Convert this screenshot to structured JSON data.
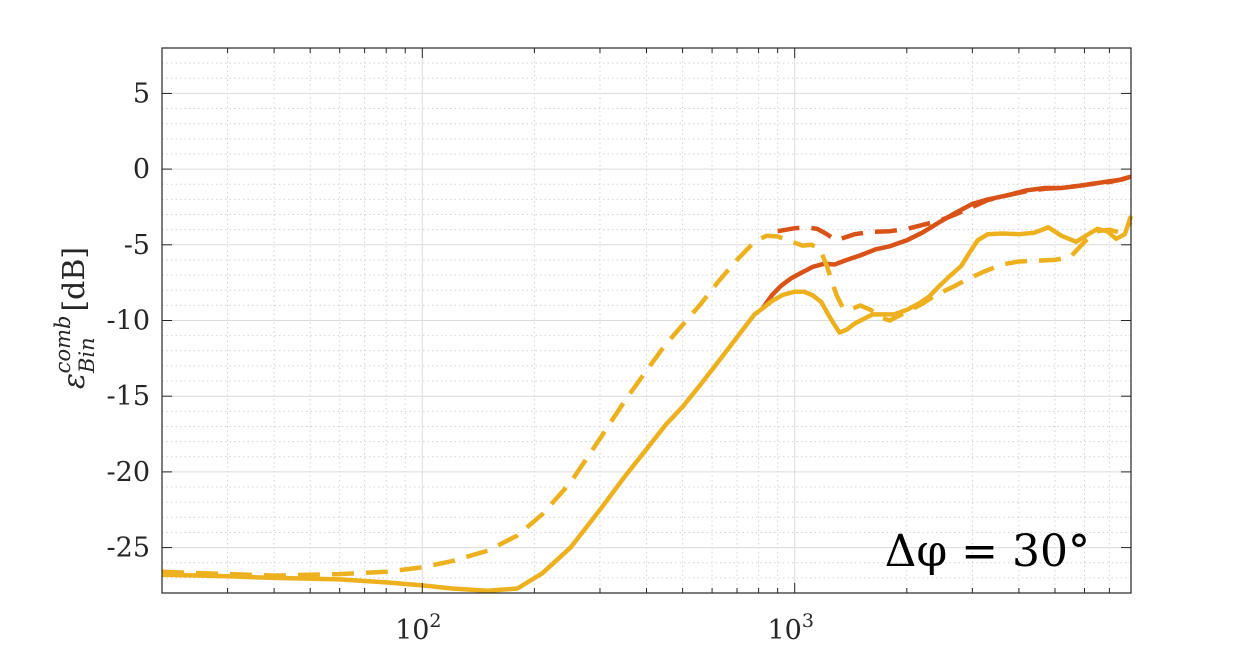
{
  "chart_data": {
    "type": "line",
    "title": "",
    "xlabel": "",
    "ylabel": "ε_Bin^comb [dB]",
    "ylabel_parts": {
      "base": "ε",
      "sup": "comb",
      "sub": "Bin",
      "unit": "[dB]"
    },
    "x_scale": "log",
    "xlim": [
      20,
      8000
    ],
    "ylim": [
      -28,
      8
    ],
    "grid": true,
    "minor_grid": true,
    "legend": "none",
    "x_ticks": [
      {
        "value": 100,
        "base": "10",
        "exp": "2"
      },
      {
        "value": 1000,
        "base": "10",
        "exp": "3"
      }
    ],
    "y_ticks": [
      {
        "value": 5,
        "label": "5"
      },
      {
        "value": 0,
        "label": "0"
      },
      {
        "value": -5,
        "label": "-5"
      },
      {
        "value": -10,
        "label": "-10"
      },
      {
        "value": -15,
        "label": "-15"
      },
      {
        "value": -20,
        "label": "-20"
      },
      {
        "value": -25,
        "label": "-25"
      }
    ],
    "annotation": "Δφ = 30°",
    "series": [
      {
        "color": "#D95319",
        "style": "solid",
        "points": [
          [
            820,
            -9.2
          ],
          [
            870,
            -8.3
          ],
          [
            920,
            -7.7
          ],
          [
            980,
            -7.2
          ],
          [
            1050,
            -6.8
          ],
          [
            1120,
            -6.45
          ],
          [
            1200,
            -6.25
          ],
          [
            1280,
            -6.3
          ],
          [
            1380,
            -6.0
          ],
          [
            1500,
            -5.7
          ],
          [
            1650,
            -5.3
          ],
          [
            1800,
            -5.1
          ],
          [
            2000,
            -4.7
          ],
          [
            2200,
            -4.2
          ],
          [
            2450,
            -3.5
          ],
          [
            2700,
            -2.9
          ],
          [
            3000,
            -2.3
          ],
          [
            3300,
            -2.0
          ],
          [
            3700,
            -1.75
          ],
          [
            4200,
            -1.4
          ],
          [
            4700,
            -1.25
          ],
          [
            5200,
            -1.25
          ],
          [
            5800,
            -1.1
          ],
          [
            6400,
            -0.95
          ],
          [
            7000,
            -0.8
          ],
          [
            7500,
            -0.7
          ],
          [
            8000,
            -0.5
          ]
        ]
      },
      {
        "color": "#D95319",
        "style": "dashed",
        "points": [
          [
            900,
            -4.1
          ],
          [
            950,
            -4.0
          ],
          [
            1000,
            -3.9
          ],
          [
            1080,
            -3.85
          ],
          [
            1150,
            -3.95
          ],
          [
            1220,
            -4.3
          ],
          [
            1290,
            -4.7
          ],
          [
            1350,
            -4.55
          ],
          [
            1450,
            -4.3
          ],
          [
            1600,
            -4.15
          ],
          [
            1800,
            -4.1
          ],
          [
            2000,
            -3.95
          ],
          [
            2200,
            -3.7
          ],
          [
            2450,
            -3.4
          ],
          [
            2700,
            -3.0
          ],
          [
            3000,
            -2.5
          ],
          [
            3300,
            -2.05
          ],
          [
            3700,
            -1.75
          ],
          [
            4200,
            -1.45
          ],
          [
            4700,
            -1.3
          ],
          [
            5200,
            -1.25
          ],
          [
            5800,
            -1.1
          ],
          [
            6400,
            -0.95
          ],
          [
            7000,
            -0.85
          ],
          [
            7500,
            -0.7
          ],
          [
            8000,
            -0.5
          ]
        ]
      },
      {
        "color": "#EDB120",
        "style": "solid",
        "points": [
          [
            20,
            -26.8
          ],
          [
            30,
            -26.9
          ],
          [
            40,
            -27.0
          ],
          [
            60,
            -27.1
          ],
          [
            80,
            -27.3
          ],
          [
            100,
            -27.5
          ],
          [
            120,
            -27.7
          ],
          [
            150,
            -27.85
          ],
          [
            180,
            -27.7
          ],
          [
            210,
            -26.7
          ],
          [
            250,
            -25.0
          ],
          [
            300,
            -22.5
          ],
          [
            350,
            -20.3
          ],
          [
            400,
            -18.5
          ],
          [
            450,
            -16.9
          ],
          [
            500,
            -15.7
          ],
          [
            560,
            -14.2
          ],
          [
            620,
            -12.8
          ],
          [
            700,
            -11.1
          ],
          [
            780,
            -9.6
          ],
          [
            820,
            -9.2
          ],
          [
            870,
            -8.7
          ],
          [
            930,
            -8.3
          ],
          [
            1000,
            -8.1
          ],
          [
            1060,
            -8.1
          ],
          [
            1120,
            -8.35
          ],
          [
            1180,
            -8.8
          ],
          [
            1230,
            -9.6
          ],
          [
            1280,
            -10.3
          ],
          [
            1320,
            -10.8
          ],
          [
            1380,
            -10.6
          ],
          [
            1450,
            -10.2
          ],
          [
            1530,
            -9.9
          ],
          [
            1620,
            -9.6
          ],
          [
            1720,
            -9.6
          ],
          [
            1850,
            -9.6
          ],
          [
            2000,
            -9.3
          ],
          [
            2150,
            -8.9
          ],
          [
            2300,
            -8.4
          ],
          [
            2450,
            -7.7
          ],
          [
            2600,
            -7.1
          ],
          [
            2800,
            -6.4
          ],
          [
            2950,
            -5.5
          ],
          [
            3100,
            -4.7
          ],
          [
            3300,
            -4.3
          ],
          [
            3600,
            -4.25
          ],
          [
            4000,
            -4.3
          ],
          [
            4400,
            -4.2
          ],
          [
            4800,
            -3.85
          ],
          [
            5200,
            -4.4
          ],
          [
            5700,
            -4.8
          ],
          [
            6100,
            -4.35
          ],
          [
            6500,
            -3.95
          ],
          [
            6900,
            -4.1
          ],
          [
            7300,
            -4.6
          ],
          [
            7700,
            -4.3
          ],
          [
            8000,
            -3.1
          ]
        ]
      },
      {
        "color": "#EDB120",
        "style": "dashed",
        "points": [
          [
            20,
            -26.6
          ],
          [
            30,
            -26.75
          ],
          [
            40,
            -26.85
          ],
          [
            60,
            -26.75
          ],
          [
            80,
            -26.6
          ],
          [
            100,
            -26.3
          ],
          [
            120,
            -25.9
          ],
          [
            150,
            -25.2
          ],
          [
            180,
            -24.2
          ],
          [
            210,
            -22.8
          ],
          [
            250,
            -20.7
          ],
          [
            300,
            -17.8
          ],
          [
            350,
            -15.3
          ],
          [
            400,
            -13.3
          ],
          [
            450,
            -11.6
          ],
          [
            500,
            -10.3
          ],
          [
            560,
            -8.9
          ],
          [
            620,
            -7.5
          ],
          [
            700,
            -6.0
          ],
          [
            780,
            -4.8
          ],
          [
            840,
            -4.4
          ],
          [
            900,
            -4.45
          ],
          [
            970,
            -4.75
          ],
          [
            1050,
            -5.05
          ],
          [
            1110,
            -5.0
          ],
          [
            1170,
            -5.3
          ],
          [
            1220,
            -6.4
          ],
          [
            1260,
            -7.5
          ],
          [
            1300,
            -8.4
          ],
          [
            1350,
            -9.2
          ],
          [
            1420,
            -9.25
          ],
          [
            1500,
            -9.0
          ],
          [
            1600,
            -9.3
          ],
          [
            1700,
            -9.8
          ],
          [
            1800,
            -10.0
          ],
          [
            1900,
            -9.7
          ],
          [
            2050,
            -9.3
          ],
          [
            2200,
            -8.9
          ],
          [
            2400,
            -8.3
          ],
          [
            2650,
            -7.8
          ],
          [
            2900,
            -7.3
          ],
          [
            3200,
            -6.8
          ],
          [
            3600,
            -6.3
          ],
          [
            4000,
            -6.1
          ],
          [
            4500,
            -6.05
          ],
          [
            5000,
            -6.0
          ],
          [
            5500,
            -5.8
          ],
          [
            6000,
            -4.8
          ],
          [
            6500,
            -4.1
          ],
          [
            7000,
            -4.0
          ],
          [
            7500,
            -4.2
          ],
          [
            8000,
            -3.5
          ]
        ]
      }
    ]
  }
}
